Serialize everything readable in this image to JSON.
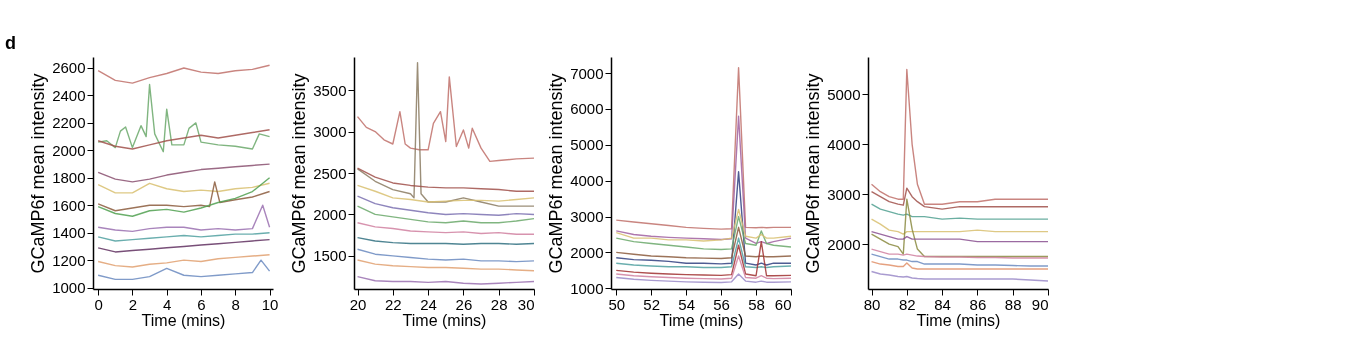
{
  "chart_data": [
    {
      "type": "line",
      "xlabel": "Time (mins)",
      "ylabel": "GCaMP6f mean intensity",
      "annotations": [
        "d"
      ],
      "xlim": [
        -0.3,
        10.2
      ],
      "ylim": [
        990,
        2680
      ],
      "xticks": [
        0,
        2,
        4,
        6,
        8,
        10
      ],
      "yticks": [
        1000,
        1200,
        1400,
        1600,
        1800,
        2000,
        2200,
        2400,
        2600
      ],
      "line_style": "solid",
      "series": [
        {
          "color": "#c0706a",
          "x": [
            0,
            1,
            2,
            3,
            4,
            5,
            6,
            7,
            8,
            9,
            10
          ],
          "values": [
            2580,
            2510,
            2490,
            2530,
            2560,
            2600,
            2570,
            2560,
            2580,
            2590,
            2620
          ]
        },
        {
          "color": "#6aa86a",
          "x": [
            0,
            0.5,
            1,
            1.3,
            1.6,
            2,
            2.5,
            2.8,
            3,
            3.3,
            3.8,
            4,
            4.3,
            5,
            5.3,
            5.7,
            6,
            7,
            8,
            9,
            9.4,
            10
          ],
          "values": [
            2060,
            2070,
            2020,
            2140,
            2170,
            2020,
            2180,
            2100,
            2480,
            2120,
            1990,
            2300,
            2040,
            2040,
            2160,
            2200,
            2060,
            2040,
            2030,
            2010,
            2120,
            2100
          ]
        },
        {
          "color": "#a0504a",
          "x": [
            0,
            1,
            2,
            3,
            4,
            5,
            6,
            7,
            8,
            9,
            10
          ],
          "values": [
            2070,
            2030,
            2010,
            2040,
            2070,
            2090,
            2110,
            2090,
            2110,
            2130,
            2150
          ]
        },
        {
          "color": "#8a5070",
          "x": [
            0,
            1,
            2,
            3,
            4,
            5,
            6,
            7,
            8,
            9,
            10
          ],
          "values": [
            1840,
            1790,
            1770,
            1790,
            1820,
            1840,
            1860,
            1870,
            1880,
            1890,
            1900
          ]
        },
        {
          "color": "#d8c070",
          "x": [
            0,
            1,
            2,
            3,
            4,
            5,
            6,
            7,
            8,
            9,
            10
          ],
          "values": [
            1750,
            1690,
            1690,
            1760,
            1720,
            1700,
            1710,
            1700,
            1720,
            1730,
            1760
          ]
        },
        {
          "color": "#8b5a3c",
          "x": [
            0,
            1,
            2,
            3,
            4,
            5,
            6,
            6.5,
            6.8,
            7.1,
            8,
            9,
            10
          ],
          "values": [
            1610,
            1560,
            1580,
            1600,
            1600,
            1590,
            1600,
            1590,
            1770,
            1620,
            1640,
            1660,
            1700
          ]
        },
        {
          "color": "#50a050",
          "x": [
            0,
            1,
            2,
            3,
            4,
            5,
            6,
            7,
            8,
            9,
            10
          ],
          "values": [
            1590,
            1540,
            1520,
            1560,
            1570,
            1550,
            1580,
            1620,
            1650,
            1700,
            1800
          ]
        },
        {
          "color": "#9a70b0",
          "x": [
            0,
            1,
            2,
            3,
            4,
            5,
            6,
            7,
            8,
            9,
            9.6,
            10
          ],
          "values": [
            1440,
            1420,
            1410,
            1430,
            1440,
            1440,
            1420,
            1430,
            1420,
            1430,
            1600,
            1440
          ]
        },
        {
          "color": "#50a0a0",
          "x": [
            0,
            1,
            2,
            3,
            4,
            5,
            6,
            7,
            8,
            9,
            10
          ],
          "values": [
            1370,
            1340,
            1350,
            1360,
            1370,
            1380,
            1370,
            1380,
            1390,
            1390,
            1400
          ]
        },
        {
          "color": "#603060",
          "x": [
            0,
            1,
            2,
            3,
            4,
            5,
            6,
            7,
            8,
            9,
            10
          ],
          "values": [
            1290,
            1260,
            1270,
            1280,
            1290,
            1300,
            1310,
            1320,
            1330,
            1340,
            1350
          ]
        },
        {
          "color": "#e0a070",
          "x": [
            0,
            1,
            2,
            3,
            4,
            5,
            6,
            7,
            8,
            9,
            10
          ],
          "values": [
            1190,
            1160,
            1150,
            1170,
            1180,
            1200,
            1190,
            1210,
            1220,
            1230,
            1240
          ]
        },
        {
          "color": "#6a8ac0",
          "x": [
            0,
            1,
            2,
            3,
            4,
            5,
            6,
            7,
            8,
            9,
            9.5,
            10
          ],
          "values": [
            1090,
            1060,
            1060,
            1080,
            1140,
            1090,
            1080,
            1090,
            1100,
            1110,
            1200,
            1120
          ]
        }
      ]
    },
    {
      "type": "line",
      "xlabel": "Time (mins)",
      "ylabel": "GCaMP6f mean intensity",
      "xlim": [
        19.8,
        30
      ],
      "ylim": [
        1100,
        3900
      ],
      "xticks": [
        20,
        22,
        24,
        26,
        28,
        30
      ],
      "yticks": [
        1500,
        2000,
        2500,
        3000,
        3500
      ],
      "line_style": "solid",
      "series": [
        {
          "color": "#c0706a",
          "x": [
            20,
            20.5,
            21,
            21.5,
            22,
            22.4,
            22.7,
            23,
            23.5,
            24,
            24.3,
            24.7,
            25,
            25.2,
            25.6,
            26,
            26.3,
            26.5,
            27,
            27.5,
            28,
            29,
            30
          ],
          "values": [
            3180,
            3050,
            3000,
            2900,
            2850,
            3240,
            2850,
            2800,
            2780,
            2780,
            3100,
            3240,
            2880,
            3660,
            2820,
            3020,
            2800,
            3040,
            2800,
            2640,
            2650,
            2670,
            2680
          ]
        },
        {
          "color": "#8a7a60",
          "x": [
            20,
            21,
            22,
            23,
            23.2,
            23.4,
            23.6,
            24,
            25,
            26,
            27,
            28,
            29,
            30
          ],
          "values": [
            2550,
            2400,
            2300,
            2250,
            2200,
            3830,
            2250,
            2150,
            2150,
            2200,
            2150,
            2100,
            2100,
            2100
          ]
        },
        {
          "color": "#a0504a",
          "x": [
            20,
            21,
            22,
            23,
            24,
            25,
            26,
            27,
            28,
            29,
            30
          ],
          "values": [
            2560,
            2450,
            2380,
            2350,
            2330,
            2320,
            2320,
            2310,
            2300,
            2280,
            2280
          ]
        },
        {
          "color": "#d8c070",
          "x": [
            20,
            21,
            22,
            23,
            24,
            25,
            26,
            27,
            28,
            29,
            30
          ],
          "values": [
            2350,
            2280,
            2200,
            2180,
            2150,
            2160,
            2170,
            2170,
            2160,
            2180,
            2200
          ]
        },
        {
          "color": "#7a70b0",
          "x": [
            20,
            21,
            22,
            23,
            24,
            25,
            26,
            27,
            28,
            29,
            30
          ],
          "values": [
            2220,
            2130,
            2080,
            2050,
            2020,
            2000,
            2010,
            2000,
            1990,
            2010,
            2000
          ]
        },
        {
          "color": "#6aa86a",
          "x": [
            20,
            21,
            22,
            23,
            24,
            25,
            26,
            27,
            28,
            29,
            30
          ],
          "values": [
            2100,
            2000,
            1970,
            1940,
            1910,
            1900,
            1920,
            1900,
            1900,
            1920,
            1950
          ]
        },
        {
          "color": "#d080a0",
          "x": [
            20,
            21,
            22,
            23,
            24,
            25,
            26,
            27,
            28,
            29,
            30
          ],
          "values": [
            1900,
            1850,
            1830,
            1800,
            1790,
            1780,
            1790,
            1770,
            1780,
            1760,
            1760
          ]
        },
        {
          "color": "#307080",
          "x": [
            20,
            21,
            22,
            23,
            24,
            25,
            26,
            27,
            28,
            29,
            30
          ],
          "values": [
            1720,
            1680,
            1660,
            1650,
            1650,
            1650,
            1640,
            1650,
            1650,
            1640,
            1650
          ]
        },
        {
          "color": "#6a8ac0",
          "x": [
            20,
            21,
            22,
            23,
            24,
            25,
            26,
            27,
            28,
            29,
            30
          ],
          "values": [
            1580,
            1520,
            1500,
            1480,
            1460,
            1450,
            1460,
            1440,
            1440,
            1430,
            1440
          ]
        },
        {
          "color": "#e0a070",
          "x": [
            20,
            21,
            22,
            23,
            24,
            25,
            26,
            27,
            28,
            29,
            30
          ],
          "values": [
            1450,
            1400,
            1380,
            1370,
            1360,
            1360,
            1350,
            1340,
            1340,
            1330,
            1320
          ]
        },
        {
          "color": "#9a70b0",
          "x": [
            20,
            21,
            22,
            23,
            24,
            25,
            26,
            27,
            28,
            29,
            30
          ],
          "values": [
            1250,
            1200,
            1190,
            1190,
            1180,
            1190,
            1170,
            1160,
            1170,
            1180,
            1190
          ]
        }
      ]
    },
    {
      "type": "line",
      "xlabel": "Time (mins)",
      "ylabel": "GCaMP6f mean intensity",
      "xlim": [
        49.7,
        60
      ],
      "ylim": [
        980,
        7450
      ],
      "xticks": [
        50,
        52,
        54,
        56,
        58,
        60
      ],
      "yticks": [
        1000,
        2000,
        3000,
        4000,
        5000,
        6000,
        7000
      ],
      "line_style": "solid",
      "series": [
        {
          "color": "#c0706a",
          "x": [
            50,
            51,
            52,
            53,
            54,
            55,
            56,
            56.6,
            57,
            57.4,
            58,
            58.3,
            58.6,
            59,
            60
          ],
          "values": [
            2900,
            2850,
            2800,
            2750,
            2700,
            2670,
            2650,
            2660,
            7150,
            2700,
            2690,
            2700,
            2690,
            2700,
            2700
          ]
        },
        {
          "color": "#a060a0",
          "x": [
            50,
            51,
            52,
            53,
            54,
            55,
            56,
            56.6,
            57,
            57.4,
            58,
            58.3,
            58.6,
            59,
            60
          ],
          "values": [
            2600,
            2500,
            2450,
            2420,
            2400,
            2380,
            2360,
            2380,
            5800,
            2400,
            2250,
            2300,
            2250,
            2300,
            2400
          ]
        },
        {
          "color": "#304080",
          "x": [
            50,
            51,
            52,
            53,
            54,
            55,
            56,
            56.6,
            57,
            57.4,
            58,
            58.3,
            58.6,
            59,
            60
          ],
          "values": [
            1850,
            1800,
            1780,
            1750,
            1700,
            1700,
            1680,
            1700,
            4250,
            1700,
            1650,
            1700,
            1650,
            1700,
            1700
          ]
        },
        {
          "color": "#6aa86a",
          "x": [
            50,
            51,
            52,
            53,
            54,
            55,
            56,
            56.6,
            57,
            57.4,
            58,
            58.3,
            58.6,
            59,
            60
          ],
          "values": [
            2400,
            2300,
            2250,
            2200,
            2150,
            2100,
            2080,
            2100,
            3000,
            2250,
            2200,
            2600,
            2250,
            2200,
            2150
          ]
        },
        {
          "color": "#d8c070",
          "x": [
            50,
            51,
            52,
            53,
            54,
            55,
            56,
            56.6,
            57,
            57.4,
            58,
            58.3,
            58.6,
            59,
            60
          ],
          "values": [
            2550,
            2400,
            2400,
            2350,
            2350,
            2320,
            2350,
            2400,
            3200,
            2450,
            2400,
            2500,
            2400,
            2400,
            2450
          ]
        },
        {
          "color": "#8b5a3c",
          "x": [
            50,
            51,
            52,
            53,
            54,
            55,
            56,
            56.6,
            57,
            57.4,
            58,
            58.3,
            58.6,
            59,
            60
          ],
          "values": [
            2000,
            1950,
            1900,
            1880,
            1850,
            1840,
            1830,
            1850,
            2700,
            1900,
            1880,
            1900,
            1880,
            1880,
            1900
          ]
        },
        {
          "color": "#50a0a0",
          "x": [
            50,
            51,
            52,
            53,
            54,
            55,
            56,
            56.6,
            57,
            57.4,
            58,
            58.3,
            58.6,
            59,
            60
          ],
          "values": [
            1700,
            1650,
            1620,
            1600,
            1600,
            1580,
            1580,
            1600,
            2400,
            1600,
            1580,
            1600,
            1580,
            1600,
            1620
          ]
        },
        {
          "color": "#a03030",
          "x": [
            50,
            51,
            52,
            53,
            54,
            55,
            56,
            56.6,
            57,
            57.4,
            58,
            58.3,
            58.6,
            59,
            60
          ],
          "values": [
            1500,
            1450,
            1420,
            1400,
            1380,
            1370,
            1360,
            1380,
            2200,
            1400,
            1350,
            2300,
            1350,
            1350,
            1360
          ]
        },
        {
          "color": "#d080a0",
          "x": [
            50,
            51,
            52,
            53,
            54,
            55,
            56,
            56.6,
            57,
            57.4,
            58,
            58.3,
            58.6,
            59,
            60
          ],
          "values": [
            1400,
            1350,
            1320,
            1300,
            1280,
            1270,
            1260,
            1280,
            1900,
            1300,
            1280,
            1350,
            1280,
            1270,
            1280
          ]
        },
        {
          "color": "#9a8ac8",
          "x": [
            50,
            51,
            52,
            53,
            54,
            55,
            56,
            56.6,
            57,
            57.4,
            58,
            58.3,
            58.6,
            59,
            60
          ],
          "values": [
            1300,
            1250,
            1220,
            1200,
            1180,
            1170,
            1160,
            1180,
            1400,
            1200,
            1170,
            1200,
            1170,
            1170,
            1180
          ]
        }
      ]
    },
    {
      "type": "line",
      "xlabel": "Time (mins)",
      "ylabel": "GCaMP6f mean intensity",
      "xlim": [
        79.8,
        90
      ],
      "ylim": [
        1100,
        5750
      ],
      "xticks": [
        80,
        82,
        84,
        86,
        88,
        90
      ],
      "yticks": [
        2000,
        3000,
        4000,
        5000
      ],
      "line_style": "solid",
      "series": [
        {
          "color": "#c0706a",
          "x": [
            80,
            80.5,
            81,
            81.5,
            81.8,
            82,
            82.3,
            82.6,
            83,
            84,
            85,
            86,
            87,
            88,
            89,
            90
          ],
          "values": [
            3200,
            3050,
            2950,
            2900,
            2900,
            5500,
            4000,
            3200,
            2800,
            2800,
            2850,
            2850,
            2900,
            2900,
            2900,
            2900
          ]
        },
        {
          "color": "#a0504a",
          "x": [
            80,
            80.5,
            81,
            81.5,
            81.8,
            82,
            82.3,
            82.6,
            83,
            84,
            85,
            86,
            87,
            88,
            89,
            90
          ],
          "values": [
            3050,
            2950,
            2850,
            2800,
            2780,
            3120,
            2950,
            2850,
            2750,
            2700,
            2750,
            2750,
            2750,
            2750,
            2750,
            2750
          ]
        },
        {
          "color": "#50a090",
          "x": [
            80,
            80.5,
            81,
            81.5,
            81.8,
            82,
            82.3,
            82.6,
            83,
            84,
            85,
            86,
            87,
            88,
            89,
            90
          ],
          "values": [
            2800,
            2700,
            2650,
            2600,
            2580,
            2600,
            2550,
            2550,
            2550,
            2500,
            2520,
            2500,
            2500,
            2500,
            2500,
            2500
          ]
        },
        {
          "color": "#d8c070",
          "x": [
            80,
            80.5,
            81,
            81.5,
            81.8,
            82,
            82.3,
            82.6,
            83,
            84,
            85,
            86,
            87,
            88,
            89,
            90
          ],
          "values": [
            2500,
            2400,
            2280,
            2250,
            2200,
            2250,
            2250,
            2250,
            2250,
            2250,
            2250,
            2280,
            2250,
            2250,
            2250,
            2250
          ]
        },
        {
          "color": "#8a8a40",
          "x": [
            80,
            80.5,
            81,
            81.5,
            81.8,
            82,
            82.3,
            82.6,
            83,
            84,
            85,
            86,
            87,
            88,
            89,
            90
          ],
          "values": [
            2200,
            2100,
            2000,
            1950,
            1800,
            2900,
            2300,
            1900,
            1750,
            1750,
            1750,
            1750,
            1750,
            1750,
            1750,
            1750
          ]
        },
        {
          "color": "#8a5090",
          "x": [
            80,
            80.5,
            81,
            81.5,
            81.8,
            82,
            82.3,
            82.6,
            83,
            84,
            85,
            86,
            87,
            88,
            89,
            90
          ],
          "values": [
            2250,
            2200,
            2150,
            2100,
            2100,
            2150,
            2100,
            2100,
            2100,
            2100,
            2100,
            2050,
            2050,
            2050,
            2050,
            2050
          ]
        },
        {
          "color": "#d080a0",
          "x": [
            80,
            80.5,
            81,
            81.5,
            81.8,
            82,
            82.3,
            82.6,
            83,
            84,
            85,
            86,
            87,
            88,
            89,
            90
          ],
          "values": [
            1900,
            1850,
            1800,
            1800,
            1780,
            1800,
            1780,
            1760,
            1750,
            1740,
            1740,
            1730,
            1730,
            1720,
            1720,
            1720
          ]
        },
        {
          "color": "#6a8ac0",
          "x": [
            80,
            80.5,
            81,
            81.5,
            81.8,
            82,
            82.3,
            82.6,
            83,
            84,
            85,
            86,
            87,
            88,
            89,
            90
          ],
          "values": [
            1800,
            1750,
            1700,
            1700,
            1680,
            1680,
            1650,
            1650,
            1600,
            1600,
            1600,
            1580,
            1580,
            1570,
            1560,
            1560
          ]
        },
        {
          "color": "#e0906a",
          "x": [
            80,
            80.5,
            81,
            81.5,
            81.8,
            82,
            82.3,
            82.6,
            83,
            84,
            85,
            86,
            87,
            88,
            89,
            90
          ],
          "values": [
            1650,
            1600,
            1580,
            1550,
            1550,
            1620,
            1520,
            1500,
            1500,
            1500,
            1500,
            1500,
            1500,
            1500,
            1500,
            1500
          ]
        },
        {
          "color": "#9a8ac8",
          "x": [
            80,
            80.5,
            81,
            81.5,
            81.8,
            82,
            82.3,
            82.6,
            83,
            84,
            85,
            86,
            87,
            88,
            89,
            90
          ],
          "values": [
            1450,
            1400,
            1380,
            1350,
            1340,
            1350,
            1320,
            1310,
            1300,
            1300,
            1300,
            1300,
            1300,
            1300,
            1280,
            1260
          ]
        }
      ]
    }
  ]
}
